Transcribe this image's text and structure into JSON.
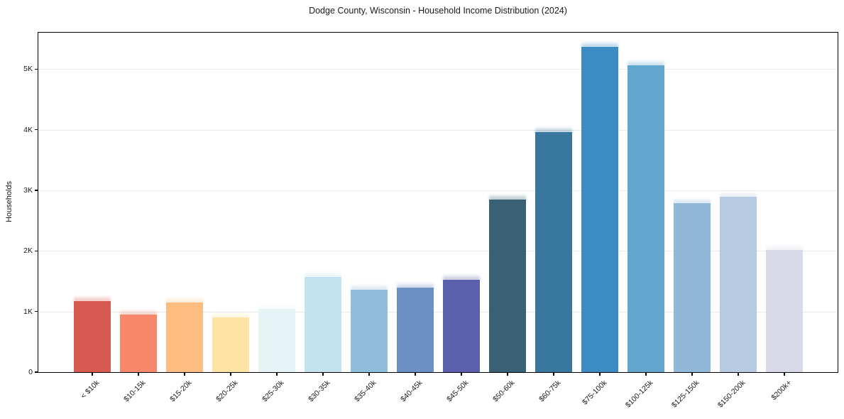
{
  "chart_data": {
    "type": "bar",
    "title": "Dodge County, Wisconsin - Household Income Distribution (2024)",
    "xlabel": "",
    "ylabel": "Households",
    "categories": [
      "< $10k",
      "$10-15k",
      "$15-20k",
      "$20-25k",
      "$25-30k",
      "$30-35k",
      "$35-40k",
      "$40-45k",
      "$45-50k",
      "$50-60k",
      "$60-75k",
      "$75-100k",
      "$100-125k",
      "$125-150k",
      "$150-200k",
      "$200k+"
    ],
    "values": [
      1175,
      945,
      1145,
      900,
      1045,
      1570,
      1355,
      1390,
      1525,
      2845,
      3965,
      5370,
      5065,
      2790,
      2895,
      2010
    ],
    "bar_colors": [
      "#d65a52",
      "#f6876a",
      "#fdbc80",
      "#fde4a4",
      "#e6f3f5",
      "#c3e1ee",
      "#91bddd",
      "#6b90c4",
      "#5b60ae",
      "#3a6075",
      "#38789f",
      "#3a8cc3",
      "#62a6cd",
      "#90b8d8",
      "#b6cae2",
      "#d7d9e7"
    ],
    "ylim": [
      0,
      5600
    ],
    "yticks": {
      "values": [
        0,
        1000,
        2000,
        3000,
        4000,
        5000
      ],
      "labels": [
        "0",
        "1K",
        "2K",
        "3K",
        "4K",
        "5K"
      ]
    },
    "grid": true,
    "grid_color": "#e9e9e9",
    "axis_color": "#000000",
    "background": "#ffffff",
    "legend": null
  }
}
